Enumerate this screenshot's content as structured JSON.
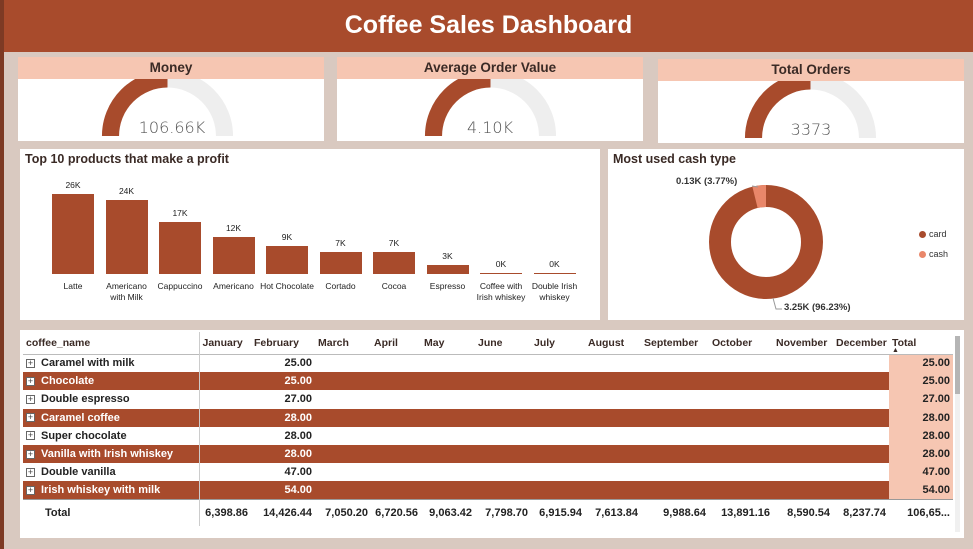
{
  "title": "Coffee Sales Dashboard",
  "kpis": {
    "money": {
      "label": "Money",
      "value": "106.66K",
      "fraction": 0.5
    },
    "aov": {
      "label": "Average Order Value",
      "value": "4.10K",
      "fraction": 0.5
    },
    "orders": {
      "label": "Total Orders",
      "value": "3373",
      "fraction": 0.5
    }
  },
  "bar_panel": {
    "title": "Top 10 products that make a profit"
  },
  "donut_panel": {
    "title": "Most used cash type",
    "cash_label": "0.13K (3.77%)",
    "card_label": "3.25K (96.23%)",
    "legend": [
      {
        "name": "card",
        "color": "#a84b2c"
      },
      {
        "name": "cash",
        "color": "#e9876a"
      }
    ]
  },
  "chart_data": [
    {
      "type": "bar",
      "title": "Top 10 products that make a profit",
      "categories": [
        "Latte",
        "Americano with Milk",
        "Cappuccino",
        "Americano",
        "Hot Chocolate",
        "Cortado",
        "Cocoa",
        "Espresso",
        "Coffee with Irish whiskey",
        "Double Irish whiskey"
      ],
      "values": [
        26,
        24,
        17,
        12,
        9,
        7,
        7,
        3,
        0.2,
        0.1
      ],
      "labels": [
        "26K",
        "24K",
        "17K",
        "12K",
        "9K",
        "7K",
        "7K",
        "3K",
        "0K",
        "0K"
      ],
      "color": "#a84b2c"
    },
    {
      "type": "pie",
      "title": "Most used cash type",
      "categories": [
        "card",
        "cash"
      ],
      "values": [
        3.25,
        0.13
      ],
      "percentages": [
        96.23,
        3.77
      ],
      "colors": [
        "#a84b2c",
        "#e9876a"
      ]
    }
  ],
  "table": {
    "headers": [
      "coffee_name",
      "January",
      "February",
      "March",
      "April",
      "May",
      "June",
      "July",
      "August",
      "September",
      "October",
      "November",
      "December",
      "Total"
    ],
    "rows": [
      {
        "name": "Caramel with milk",
        "february": "25.00",
        "total": "25.00"
      },
      {
        "name": "Chocolate",
        "february": "25.00",
        "total": "25.00"
      },
      {
        "name": "Double espresso",
        "february": "27.00",
        "total": "27.00"
      },
      {
        "name": "Caramel coffee",
        "february": "28.00",
        "total": "28.00"
      },
      {
        "name": "Super chocolate",
        "february": "28.00",
        "total": "28.00"
      },
      {
        "name": "Vanilla with Irish whiskey",
        "february": "28.00",
        "total": "28.00"
      },
      {
        "name": "Double vanilla",
        "february": "47.00",
        "total": "47.00"
      },
      {
        "name": "Irish whiskey with milk",
        "february": "54.00",
        "total": "54.00"
      }
    ],
    "totals": [
      "Total",
      "6,398.86",
      "14,426.44",
      "7,050.20",
      "6,720.56",
      "9,063.42",
      "7,798.70",
      "6,915.94",
      "7,613.84",
      "9,988.64",
      "13,891.16",
      "8,590.54",
      "8,237.74",
      "106,65..."
    ],
    "sort_indicator": "▲"
  }
}
